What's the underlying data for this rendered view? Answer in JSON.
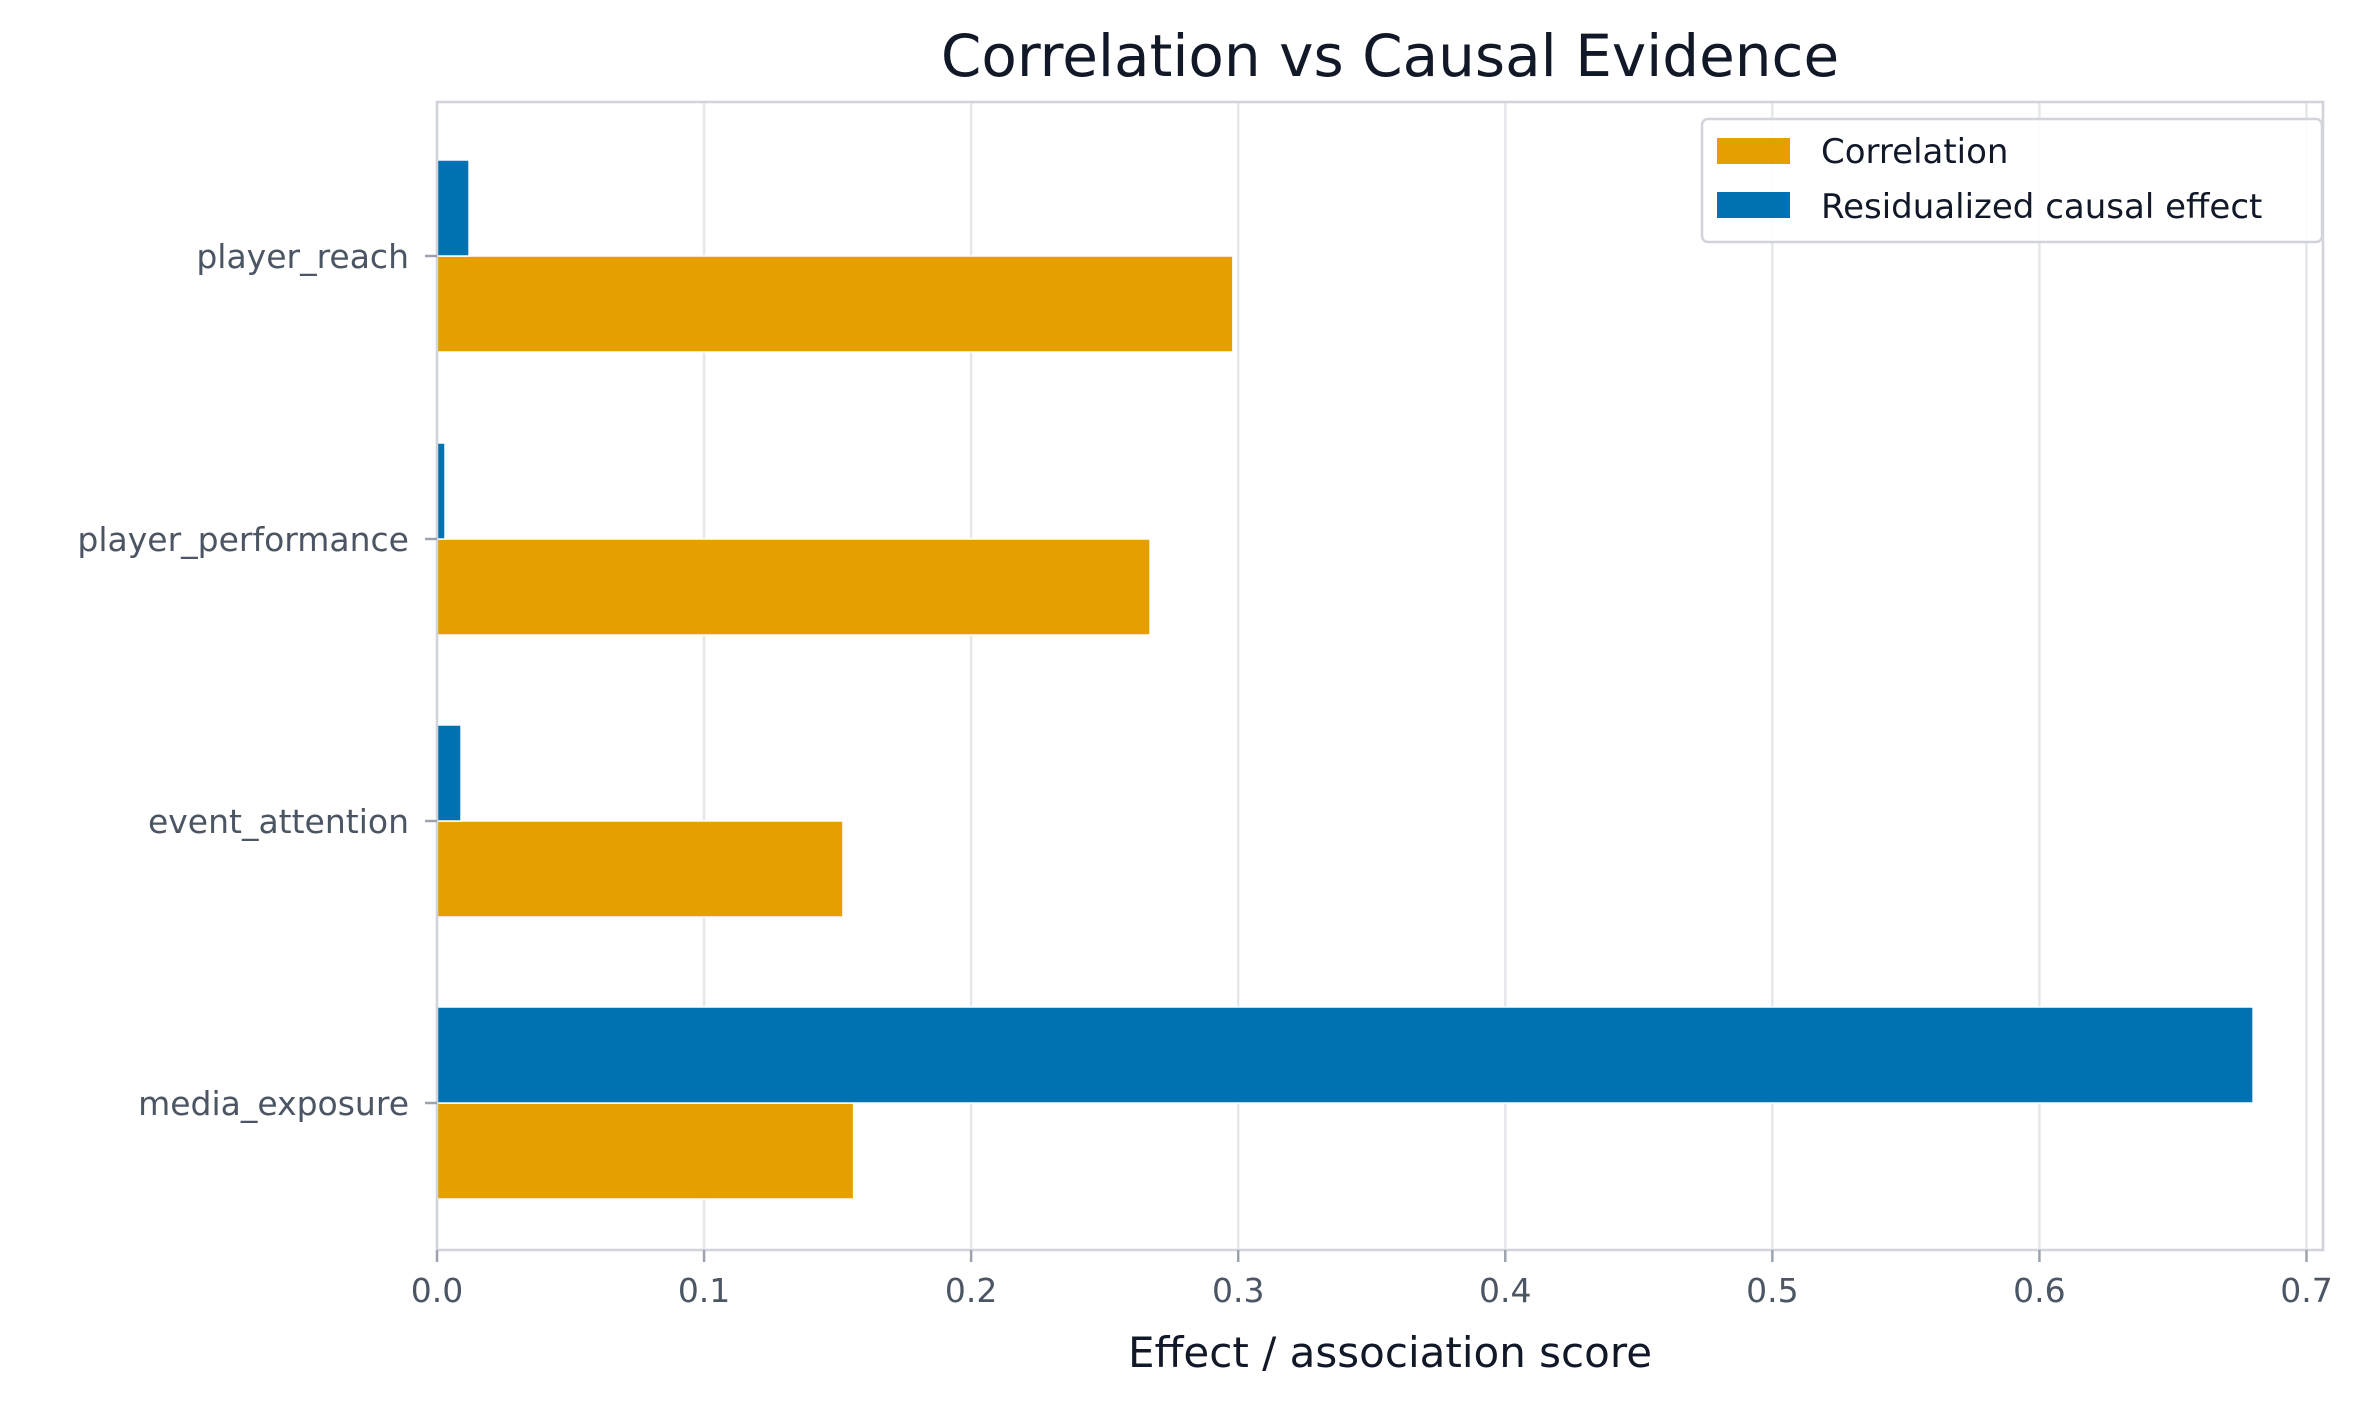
{
  "chart_data": {
    "type": "bar",
    "orientation": "horizontal",
    "title": "Correlation vs Causal Evidence",
    "xlabel": "Effect / association score",
    "ylabel": "",
    "xlim": [
      0,
      0.7
    ],
    "xticks": [
      "0.0",
      "0.1",
      "0.2",
      "0.3",
      "0.4",
      "0.5",
      "0.6",
      "0.7"
    ],
    "categories": [
      "media_exposure",
      "event_attention",
      "player_performance",
      "player_reach"
    ],
    "series": [
      {
        "name": "Correlation",
        "color": "#E69F00",
        "values": [
          0.156,
          0.152,
          0.267,
          0.298
        ]
      },
      {
        "name": "Residualized causal effect",
        "color": "#0072B2",
        "values": [
          0.68,
          0.009,
          0.003,
          0.012
        ]
      }
    ],
    "grid": "x",
    "legend": "top-right"
  }
}
